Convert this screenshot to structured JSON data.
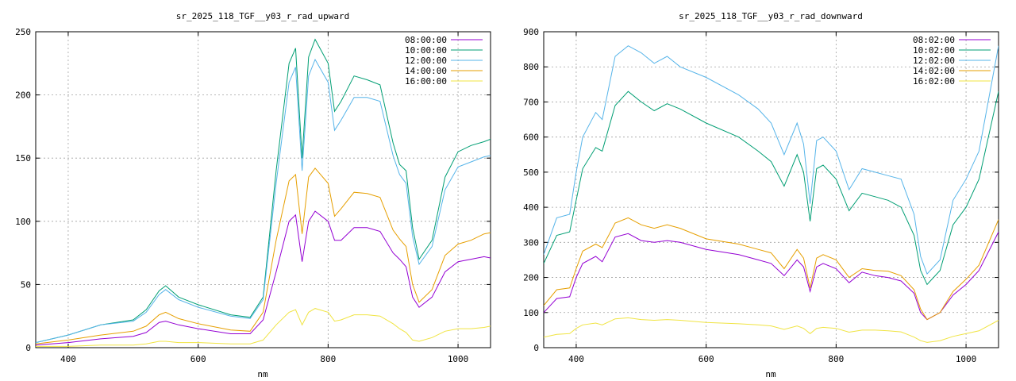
{
  "chart_data": [
    {
      "type": "line",
      "title": "sr_2025_118_TGF__y03_r_rad_upward",
      "xlabel": "nm",
      "ylabel": "",
      "xlim": [
        350,
        1050
      ],
      "ylim": [
        0,
        250
      ],
      "xticks": [
        400,
        600,
        800,
        1000
      ],
      "yticks": [
        0,
        50,
        100,
        150,
        200,
        250
      ],
      "grid": true,
      "legend_position": "top-right",
      "series": [
        {
          "name": "08:00:00",
          "color": "#9400d3",
          "x": [
            350,
            400,
            450,
            500,
            520,
            540,
            550,
            570,
            600,
            650,
            680,
            700,
            720,
            740,
            750,
            760,
            770,
            780,
            800,
            810,
            820,
            840,
            860,
            880,
            900,
            910,
            920,
            930,
            940,
            960,
            980,
            1000,
            1020,
            1040,
            1050
          ],
          "y": [
            2,
            4,
            7,
            9,
            12,
            20,
            21,
            18,
            15,
            11,
            11,
            22,
            60,
            100,
            105,
            68,
            100,
            108,
            100,
            85,
            85,
            95,
            95,
            92,
            75,
            70,
            64,
            40,
            32,
            40,
            60,
            68,
            70,
            72,
            71
          ]
        },
        {
          "name": "10:00:00",
          "color": "#009e73",
          "x": [
            350,
            400,
            450,
            500,
            520,
            540,
            550,
            570,
            600,
            650,
            680,
            700,
            720,
            740,
            750,
            760,
            770,
            780,
            800,
            810,
            820,
            840,
            860,
            880,
            900,
            910,
            920,
            930,
            940,
            960,
            980,
            1000,
            1020,
            1040,
            1050
          ],
          "y": [
            4,
            10,
            18,
            22,
            30,
            45,
            49,
            40,
            34,
            26,
            24,
            40,
            140,
            225,
            237,
            150,
            230,
            244,
            225,
            187,
            195,
            215,
            212,
            208,
            162,
            145,
            140,
            95,
            70,
            85,
            135,
            155,
            160,
            163,
            165
          ]
        },
        {
          "name": "12:00:00",
          "color": "#56b4e9",
          "x": [
            350,
            400,
            450,
            500,
            520,
            540,
            550,
            570,
            600,
            650,
            680,
            700,
            720,
            740,
            750,
            760,
            770,
            780,
            800,
            810,
            820,
            840,
            860,
            880,
            900,
            910,
            920,
            930,
            940,
            960,
            980,
            1000,
            1020,
            1040,
            1050
          ],
          "y": [
            4,
            10,
            18,
            21,
            28,
            42,
            46,
            38,
            32,
            25,
            23,
            38,
            130,
            210,
            222,
            140,
            215,
            228,
            210,
            172,
            180,
            198,
            198,
            195,
            152,
            137,
            130,
            88,
            66,
            80,
            125,
            143,
            147,
            151,
            152
          ]
        },
        {
          "name": "14:00:00",
          "color": "#e69f00",
          "x": [
            350,
            400,
            450,
            500,
            520,
            540,
            550,
            570,
            600,
            650,
            680,
            700,
            720,
            740,
            750,
            760,
            770,
            780,
            800,
            810,
            820,
            840,
            860,
            880,
            900,
            910,
            920,
            930,
            940,
            960,
            980,
            1000,
            1020,
            1040,
            1050
          ],
          "y": [
            3,
            6,
            10,
            13,
            17,
            26,
            28,
            23,
            19,
            14,
            13,
            28,
            85,
            132,
            137,
            90,
            135,
            142,
            130,
            104,
            110,
            123,
            122,
            119,
            93,
            86,
            80,
            50,
            36,
            46,
            73,
            82,
            85,
            90,
            91
          ]
        },
        {
          "name": "16:00:00",
          "color": "#f0e442",
          "x": [
            350,
            400,
            450,
            500,
            520,
            540,
            550,
            570,
            600,
            650,
            680,
            700,
            720,
            740,
            750,
            760,
            770,
            780,
            800,
            810,
            820,
            840,
            860,
            880,
            900,
            910,
            920,
            930,
            940,
            960,
            980,
            1000,
            1020,
            1040,
            1050
          ],
          "y": [
            1,
            1,
            2,
            2,
            3,
            5,
            5,
            4,
            4,
            3,
            3,
            6,
            18,
            28,
            30,
            18,
            28,
            31,
            28,
            21,
            22,
            26,
            26,
            25,
            19,
            15,
            12,
            6,
            5,
            8,
            13,
            15,
            15,
            16,
            17
          ]
        }
      ]
    },
    {
      "type": "line",
      "title": "sr_2025_118_TGF__y03_r_rad_downward",
      "xlabel": "nm",
      "ylabel": "",
      "xlim": [
        350,
        1050
      ],
      "ylim": [
        0,
        900
      ],
      "xticks": [
        400,
        600,
        800,
        1000
      ],
      "yticks": [
        0,
        100,
        200,
        300,
        400,
        500,
        600,
        700,
        800,
        900
      ],
      "grid": true,
      "legend_position": "top-right",
      "series": [
        {
          "name": "08:02:00",
          "color": "#9400d3",
          "x": [
            350,
            370,
            390,
            400,
            410,
            430,
            440,
            460,
            480,
            500,
            520,
            540,
            560,
            600,
            650,
            680,
            700,
            720,
            740,
            750,
            760,
            770,
            780,
            800,
            820,
            840,
            860,
            880,
            900,
            920,
            930,
            940,
            960,
            980,
            1000,
            1020,
            1050
          ],
          "y": [
            100,
            140,
            145,
            200,
            240,
            260,
            245,
            315,
            325,
            305,
            300,
            305,
            300,
            280,
            265,
            250,
            240,
            205,
            250,
            230,
            160,
            230,
            240,
            225,
            185,
            215,
            205,
            200,
            190,
            155,
            100,
            80,
            100,
            150,
            180,
            220,
            330
          ]
        },
        {
          "name": "10:02:00",
          "color": "#009e73",
          "x": [
            350,
            370,
            390,
            400,
            410,
            430,
            440,
            460,
            480,
            500,
            520,
            540,
            560,
            600,
            650,
            680,
            700,
            720,
            740,
            750,
            760,
            770,
            780,
            800,
            820,
            840,
            860,
            880,
            900,
            920,
            930,
            940,
            960,
            980,
            1000,
            1020,
            1050
          ],
          "y": [
            240,
            320,
            330,
            420,
            510,
            570,
            560,
            690,
            730,
            700,
            675,
            695,
            680,
            640,
            600,
            560,
            530,
            460,
            550,
            500,
            360,
            510,
            520,
            480,
            390,
            440,
            430,
            420,
            400,
            320,
            220,
            180,
            220,
            350,
            400,
            480,
            730
          ]
        },
        {
          "name": "12:02:00",
          "color": "#56b4e9",
          "x": [
            350,
            370,
            390,
            400,
            410,
            430,
            440,
            460,
            480,
            500,
            520,
            540,
            560,
            600,
            650,
            680,
            700,
            720,
            740,
            750,
            760,
            770,
            780,
            800,
            820,
            840,
            860,
            880,
            900,
            920,
            930,
            940,
            960,
            980,
            1000,
            1020,
            1050
          ],
          "y": [
            265,
            370,
            380,
            500,
            600,
            670,
            650,
            830,
            860,
            840,
            810,
            830,
            800,
            770,
            720,
            680,
            640,
            550,
            640,
            580,
            410,
            590,
            600,
            560,
            450,
            510,
            500,
            490,
            480,
            380,
            260,
            210,
            250,
            420,
            480,
            560,
            860
          ]
        },
        {
          "name": "14:02:00",
          "color": "#e69f00",
          "x": [
            350,
            370,
            390,
            400,
            410,
            430,
            440,
            460,
            480,
            500,
            520,
            540,
            560,
            600,
            650,
            680,
            700,
            720,
            740,
            750,
            760,
            770,
            780,
            800,
            820,
            840,
            860,
            880,
            900,
            920,
            930,
            940,
            960,
            980,
            1000,
            1020,
            1050
          ],
          "y": [
            120,
            165,
            170,
            225,
            275,
            295,
            285,
            355,
            370,
            350,
            340,
            350,
            340,
            310,
            295,
            280,
            270,
            225,
            280,
            255,
            170,
            255,
            265,
            250,
            200,
            225,
            220,
            218,
            205,
            165,
            110,
            80,
            100,
            160,
            195,
            235,
            365
          ]
        },
        {
          "name": "16:02:00",
          "color": "#f0e442",
          "x": [
            350,
            370,
            390,
            400,
            410,
            430,
            440,
            460,
            480,
            500,
            520,
            540,
            560,
            600,
            650,
            680,
            700,
            720,
            740,
            750,
            760,
            770,
            780,
            800,
            820,
            840,
            860,
            880,
            900,
            920,
            930,
            940,
            960,
            980,
            1000,
            1020,
            1050
          ],
          "y": [
            30,
            38,
            40,
            55,
            65,
            70,
            65,
            82,
            85,
            80,
            78,
            80,
            78,
            72,
            68,
            65,
            62,
            52,
            62,
            55,
            40,
            55,
            58,
            55,
            44,
            50,
            50,
            48,
            45,
            30,
            20,
            15,
            20,
            32,
            40,
            48,
            78
          ]
        }
      ]
    }
  ]
}
